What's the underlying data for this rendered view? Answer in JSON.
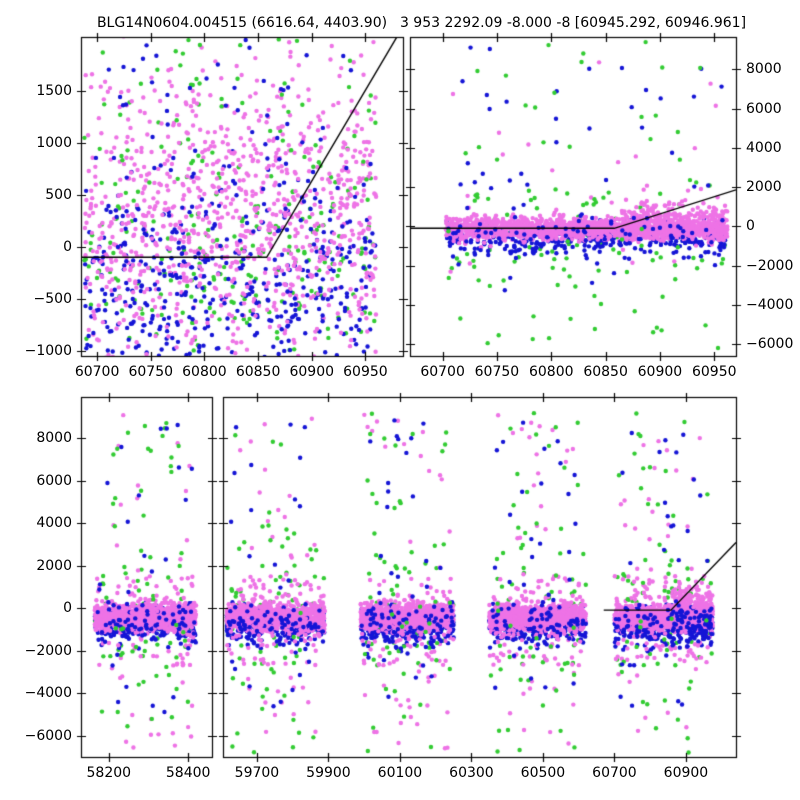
{
  "figure": {
    "title_left": "BLG14N0604.004515 (6616.64, 4403.90)",
    "title_right": "3 953 2292.09 -8.000 -8 [60945.292, 60946.961]",
    "bg": "#ffffff",
    "frame_color": "#000000",
    "model_line_color": "#000000",
    "dot_radius": 2.2,
    "colors": {
      "violet": "#EE73E6",
      "blue": "#1515D6",
      "green": "#33CC33"
    },
    "series_legend": []
  },
  "chart_data": [
    {
      "type": "scatter",
      "name": "top-left-zoom-panel",
      "seed": 11,
      "px": {
        "l": 81,
        "t": 37,
        "r": 403,
        "b": 356
      },
      "xlim": [
        60685,
        60985
      ],
      "ylim": [
        -1050,
        2020
      ],
      "xticks": [
        60700,
        60750,
        60800,
        60850,
        60900,
        60950
      ],
      "yticks": [
        -1000,
        -500,
        0,
        500,
        1000,
        1500
      ],
      "ylabel_side": "left",
      "model_line": [
        [
          60685,
          -100
        ],
        [
          60858,
          -100
        ],
        [
          60985,
          2120
        ]
      ],
      "clusters": [
        {
          "color": "green",
          "n": 250,
          "x": [
            60688,
            60960
          ],
          "y": {
            "d": "n",
            "m": -150,
            "s": 680
          }
        },
        {
          "color": "blue",
          "n": 360,
          "x": [
            60688,
            60960
          ],
          "y": {
            "d": "n",
            "m": -350,
            "s": 520
          }
        },
        {
          "color": "violet",
          "n": 820,
          "x": [
            60688,
            60960
          ],
          "y": {
            "d": "n",
            "m": 100,
            "s": 680
          }
        },
        {
          "color": "violet",
          "n": 170,
          "x": [
            60700,
            60960
          ],
          "y": {
            "d": "n",
            "m": 1000,
            "s": 550
          }
        },
        {
          "color": "blue",
          "n": 110,
          "x": [
            60690,
            60958
          ],
          "y": {
            "d": "n",
            "m": -250,
            "s": 600
          }
        },
        {
          "color": "green",
          "n": 45,
          "x": [
            60700,
            60955
          ],
          "y": {
            "d": "u",
            "lo": 600,
            "hi": 2000
          }
        },
        {
          "color": "blue",
          "n": 55,
          "x": [
            60700,
            60955
          ],
          "y": {
            "d": "u",
            "lo": 300,
            "hi": 2000
          }
        }
      ]
    },
    {
      "type": "scatter",
      "name": "top-right-residual-panel",
      "seed": 22,
      "px": {
        "l": 410,
        "t": 37,
        "r": 736,
        "b": 356
      },
      "xlim": [
        60670,
        60970
      ],
      "ylim": [
        -6600,
        9640
      ],
      "xticks": [
        60700,
        60750,
        60800,
        60850,
        60900,
        60950
      ],
      "yticks": [
        -6000,
        -4000,
        -2000,
        0,
        2000,
        4000,
        6000,
        8000
      ],
      "ylabel_side": "right",
      "model_line": [
        [
          60670,
          -100
        ],
        [
          60858,
          -100
        ],
        [
          60970,
          1860
        ]
      ],
      "clusters": [
        {
          "color": "green",
          "n": 85,
          "x": [
            60705,
            60960
          ],
          "y": {
            "d": "n",
            "m": -200,
            "s": 1500
          }
        },
        {
          "color": "blue",
          "n": 380,
          "x": [
            60703,
            60960
          ],
          "y": {
            "d": "n",
            "m": -550,
            "s": 400
          }
        },
        {
          "color": "violet",
          "n": 1500,
          "x": [
            60703,
            60962
          ],
          "y": {
            "d": "n",
            "m": -100,
            "s": 290
          }
        },
        {
          "color": "violet",
          "n": 200,
          "x": [
            60865,
            60962
          ],
          "y": {
            "d": "n",
            "m": 450,
            "s": 480
          }
        },
        {
          "color": "blue",
          "n": 80,
          "x": [
            60705,
            60960
          ],
          "y": {
            "d": "n",
            "m": -450,
            "s": 450
          }
        },
        {
          "color": "violet",
          "n": 28,
          "x": [
            60705,
            60960
          ],
          "y": {
            "d": "u",
            "lo": -2600,
            "hi": 9300
          }
        },
        {
          "color": "blue",
          "n": 45,
          "x": [
            60705,
            60960
          ],
          "y": {
            "d": "u",
            "lo": -3600,
            "hi": 9200
          }
        },
        {
          "color": "green",
          "n": 55,
          "x": [
            60705,
            60960
          ],
          "y": {
            "d": "u",
            "lo": -6400,
            "hi": 9400
          }
        }
      ]
    },
    {
      "type": "scatter",
      "name": "bottom-left-broken-axis-panel",
      "seed": 33,
      "px": {
        "l": 81,
        "t": 397,
        "r": 212,
        "b": 757
      },
      "xlim": [
        58130,
        58460
      ],
      "ylim": [
        -7010,
        9930
      ],
      "xticks": [
        58200,
        58400
      ],
      "yticks": [
        -6000,
        -4000,
        -2000,
        0,
        2000,
        4000,
        6000,
        8000
      ],
      "ylabel_side": "left",
      "model_line": null,
      "clusters": [
        {
          "color": "green",
          "n": 55,
          "x": [
            58165,
            58420
          ],
          "y": {
            "d": "n",
            "m": -300,
            "s": 1500
          }
        },
        {
          "color": "blue",
          "n": 260,
          "x": [
            58165,
            58420
          ],
          "y": {
            "d": "n",
            "m": -850,
            "s": 400
          }
        },
        {
          "color": "violet",
          "n": 90,
          "x": [
            58165,
            58420
          ],
          "y": {
            "d": "u",
            "lo": -2700,
            "hi": 1500
          }
        },
        {
          "color": "violet",
          "n": 820,
          "x": [
            58165,
            58420
          ],
          "y": {
            "d": "n",
            "m": -420,
            "s": 320
          }
        },
        {
          "color": "blue",
          "n": 70,
          "x": [
            58165,
            58420
          ],
          "y": {
            "d": "n",
            "m": -700,
            "s": 500
          }
        },
        {
          "color": "violet",
          "n": 42,
          "x": [
            58175,
            58410
          ],
          "y": {
            "d": "u",
            "lo": -6800,
            "hi": 9200
          }
        },
        {
          "color": "green",
          "n": 38,
          "x": [
            58175,
            58410
          ],
          "y": {
            "d": "u",
            "lo": -6800,
            "hi": 9200
          }
        },
        {
          "color": "blue",
          "n": 26,
          "x": [
            58175,
            58410
          ],
          "y": {
            "d": "u",
            "lo": -5200,
            "hi": 8900
          }
        }
      ]
    },
    {
      "type": "scatter",
      "name": "bottom-right-broken-axis-panel",
      "seed": 44,
      "px": {
        "l": 223,
        "t": 397,
        "r": 736,
        "b": 757
      },
      "xlim": [
        59605,
        61040
      ],
      "ylim": [
        -7010,
        9930
      ],
      "xticks": [
        59700,
        59900,
        60100,
        60300,
        60500,
        60700,
        60900
      ],
      "yticks": [
        -6000,
        -4000,
        -2000,
        0,
        2000,
        4000,
        6000,
        8000
      ],
      "ylabel_side": "none",
      "model_line": [
        [
          60670,
          -100
        ],
        [
          60858,
          -100
        ],
        [
          61040,
          3085
        ]
      ],
      "clusters": [
        {
          "color": "green",
          "n": 55,
          "x": [
            59615,
            59890
          ],
          "y": {
            "d": "n",
            "m": -300,
            "s": 1500
          }
        },
        {
          "color": "blue",
          "n": 260,
          "x": [
            59615,
            59890
          ],
          "y": {
            "d": "n",
            "m": -850,
            "s": 400
          }
        },
        {
          "color": "violet",
          "n": 90,
          "x": [
            59615,
            59890
          ],
          "y": {
            "d": "u",
            "lo": -2700,
            "hi": 1500
          }
        },
        {
          "color": "violet",
          "n": 820,
          "x": [
            59615,
            59890
          ],
          "y": {
            "d": "n",
            "m": -420,
            "s": 320
          }
        },
        {
          "color": "blue",
          "n": 70,
          "x": [
            59615,
            59890
          ],
          "y": {
            "d": "n",
            "m": -700,
            "s": 500
          }
        },
        {
          "color": "violet",
          "n": 42,
          "x": [
            59625,
            59880
          ],
          "y": {
            "d": "u",
            "lo": -6800,
            "hi": 9200
          }
        },
        {
          "color": "green",
          "n": 38,
          "x": [
            59625,
            59880
          ],
          "y": {
            "d": "u",
            "lo": -6800,
            "hi": 9200
          }
        },
        {
          "color": "blue",
          "n": 26,
          "x": [
            59625,
            59880
          ],
          "y": {
            "d": "u",
            "lo": -5200,
            "hi": 8900
          }
        },
        {
          "color": "green",
          "n": 55,
          "x": [
            59990,
            60250
          ],
          "y": {
            "d": "n",
            "m": -300,
            "s": 1500
          }
        },
        {
          "color": "blue",
          "n": 260,
          "x": [
            59990,
            60250
          ],
          "y": {
            "d": "n",
            "m": -850,
            "s": 400
          }
        },
        {
          "color": "violet",
          "n": 90,
          "x": [
            59990,
            60250
          ],
          "y": {
            "d": "u",
            "lo": -2700,
            "hi": 1500
          }
        },
        {
          "color": "violet",
          "n": 820,
          "x": [
            59990,
            60250
          ],
          "y": {
            "d": "n",
            "m": -420,
            "s": 320
          }
        },
        {
          "color": "blue",
          "n": 70,
          "x": [
            59990,
            60250
          ],
          "y": {
            "d": "n",
            "m": -700,
            "s": 500
          }
        },
        {
          "color": "violet",
          "n": 42,
          "x": [
            60000,
            60240
          ],
          "y": {
            "d": "u",
            "lo": -6800,
            "hi": 9200
          }
        },
        {
          "color": "green",
          "n": 38,
          "x": [
            60000,
            60240
          ],
          "y": {
            "d": "u",
            "lo": -6800,
            "hi": 9200
          }
        },
        {
          "color": "blue",
          "n": 26,
          "x": [
            60000,
            60240
          ],
          "y": {
            "d": "u",
            "lo": -5200,
            "hi": 8900
          }
        },
        {
          "color": "green",
          "n": 55,
          "x": [
            60350,
            60620
          ],
          "y": {
            "d": "n",
            "m": -300,
            "s": 1500
          }
        },
        {
          "color": "blue",
          "n": 260,
          "x": [
            60350,
            60620
          ],
          "y": {
            "d": "n",
            "m": -850,
            "s": 400
          }
        },
        {
          "color": "violet",
          "n": 90,
          "x": [
            60350,
            60620
          ],
          "y": {
            "d": "u",
            "lo": -2700,
            "hi": 1500
          }
        },
        {
          "color": "violet",
          "n": 820,
          "x": [
            60350,
            60620
          ],
          "y": {
            "d": "n",
            "m": -420,
            "s": 320
          }
        },
        {
          "color": "blue",
          "n": 70,
          "x": [
            60350,
            60620
          ],
          "y": {
            "d": "n",
            "m": -700,
            "s": 500
          }
        },
        {
          "color": "violet",
          "n": 42,
          "x": [
            60360,
            60610
          ],
          "y": {
            "d": "u",
            "lo": -6800,
            "hi": 9200
          }
        },
        {
          "color": "green",
          "n": 38,
          "x": [
            60360,
            60610
          ],
          "y": {
            "d": "u",
            "lo": -6800,
            "hi": 9200
          }
        },
        {
          "color": "blue",
          "n": 26,
          "x": [
            60360,
            60610
          ],
          "y": {
            "d": "u",
            "lo": -5200,
            "hi": 8900
          }
        },
        {
          "color": "green",
          "n": 55,
          "x": [
            60700,
            60975
          ],
          "y": {
            "d": "n",
            "m": -300,
            "s": 1500
          }
        },
        {
          "color": "blue",
          "n": 260,
          "x": [
            60700,
            60975
          ],
          "y": {
            "d": "n",
            "m": -850,
            "s": 400
          }
        },
        {
          "color": "violet",
          "n": 90,
          "x": [
            60700,
            60975
          ],
          "y": {
            "d": "u",
            "lo": -2700,
            "hi": 1500
          }
        },
        {
          "color": "violet",
          "n": 820,
          "x": [
            60700,
            60975
          ],
          "y": {
            "d": "n",
            "m": -420,
            "s": 320
          }
        },
        {
          "color": "violet",
          "n": 130,
          "x": [
            60870,
            60975
          ],
          "y": {
            "d": "n",
            "m": 250,
            "s": 500
          }
        },
        {
          "color": "blue",
          "n": 70,
          "x": [
            60860,
            60975
          ],
          "y": {
            "d": "n",
            "m": -800,
            "s": 450
          }
        },
        {
          "color": "blue",
          "n": 70,
          "x": [
            60700,
            60975
          ],
          "y": {
            "d": "n",
            "m": -700,
            "s": 500
          }
        },
        {
          "color": "violet",
          "n": 42,
          "x": [
            60710,
            60965
          ],
          "y": {
            "d": "u",
            "lo": -6800,
            "hi": 9200
          }
        },
        {
          "color": "green",
          "n": 38,
          "x": [
            60710,
            60965
          ],
          "y": {
            "d": "u",
            "lo": -6800,
            "hi": 9200
          }
        },
        {
          "color": "blue",
          "n": 26,
          "x": [
            60710,
            60965
          ],
          "y": {
            "d": "u",
            "lo": -5200,
            "hi": 8900
          }
        }
      ]
    }
  ]
}
